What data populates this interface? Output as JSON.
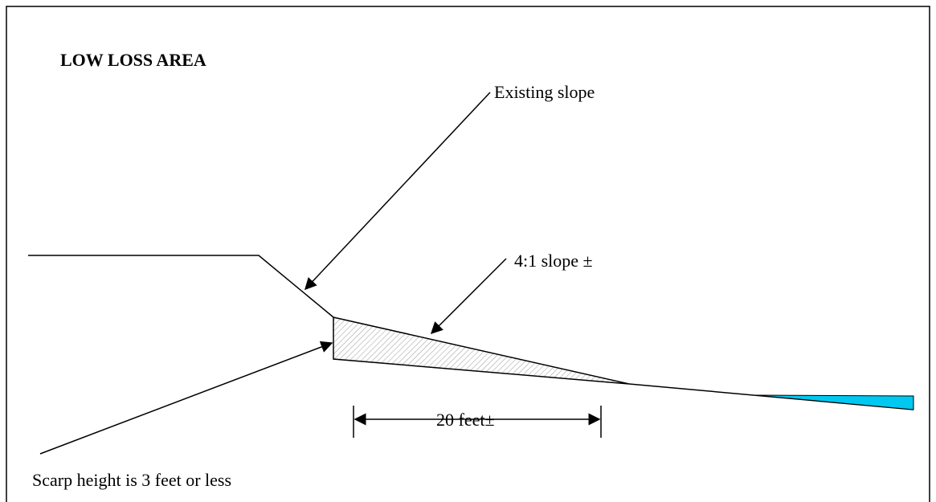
{
  "header": {
    "title": "LOW LOSS AREA"
  },
  "labels": {
    "existing_slope": "Existing slope",
    "slope_ratio": "4:1 slope ±",
    "distance": "20 feet±",
    "scarp": "Scarp height is 3 feet or less"
  }
}
